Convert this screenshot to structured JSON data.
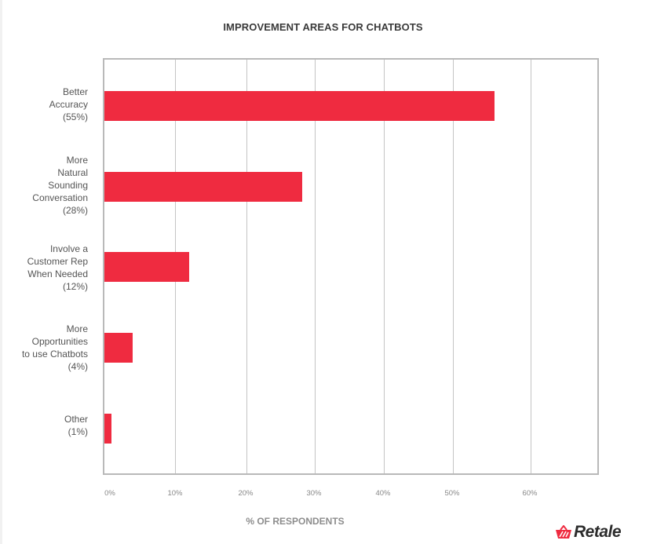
{
  "title": "IMPROVEMENT AREAS FOR CHATBOTS",
  "xaxis_label": "% OF RESPONDENTS",
  "brand": {
    "name": "Retale",
    "icon": "basket-icon",
    "accent": "#ef2b40"
  },
  "ticks": [
    "0%",
    "10%",
    "20%",
    "30%",
    "40%",
    "50%",
    "60%"
  ],
  "categories": [
    {
      "label": "Better\nAccuracy\n(55%)",
      "value": 55
    },
    {
      "label": "More\nNatural\nSounding\nConversation\n(28%)",
      "value": 28
    },
    {
      "label": "Involve a\nCustomer Rep\nWhen Needed\n(12%)",
      "value": 12
    },
    {
      "label": "More\nOpportunities\nto use Chatbots\n(4%)",
      "value": 4
    },
    {
      "label": "Other\n(1%)",
      "value": 1
    }
  ],
  "chart_data": {
    "type": "bar",
    "orientation": "horizontal",
    "title": "IMPROVEMENT AREAS FOR CHATBOTS",
    "categories": [
      "Better Accuracy",
      "More Natural Sounding Conversation",
      "Involve a Customer Rep When Needed",
      "More Opportunities to use Chatbots",
      "Other"
    ],
    "values": [
      55,
      28,
      12,
      4,
      1
    ],
    "xlabel": "% OF RESPONDENTS",
    "ylabel": "",
    "xlim": [
      0,
      70
    ],
    "xticks": [
      "0%",
      "10%",
      "20%",
      "30%",
      "40%",
      "50%",
      "60%"
    ],
    "grid": true,
    "legend": "none",
    "bar_color": "#ef2b40"
  }
}
